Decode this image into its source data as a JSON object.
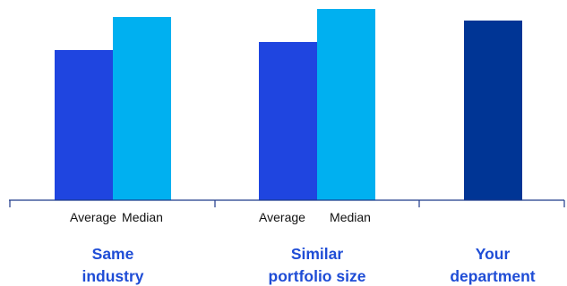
{
  "chart_data": {
    "type": "bar",
    "groups": [
      {
        "label_lines": [
          "Same",
          "industry"
        ],
        "bars": [
          {
            "label": "Average",
            "value": 168,
            "color": "#1f45e0"
          },
          {
            "label": "Median",
            "value": 205,
            "color": "#00b0f0"
          }
        ]
      },
      {
        "label_lines": [
          "Similar",
          "portfolio size"
        ],
        "bars": [
          {
            "label": "Average",
            "value": 177,
            "color": "#1f45e0"
          },
          {
            "label": "Median",
            "value": 214,
            "color": "#00b0f0"
          }
        ]
      },
      {
        "label_lines": [
          "Your",
          "department"
        ],
        "bars": [
          {
            "label": "",
            "value": 201,
            "color": "#003595"
          }
        ]
      }
    ],
    "ylim": [
      0,
      223
    ],
    "grid": false,
    "legend": "none",
    "title": "",
    "xlabel": "",
    "ylabel": ""
  }
}
